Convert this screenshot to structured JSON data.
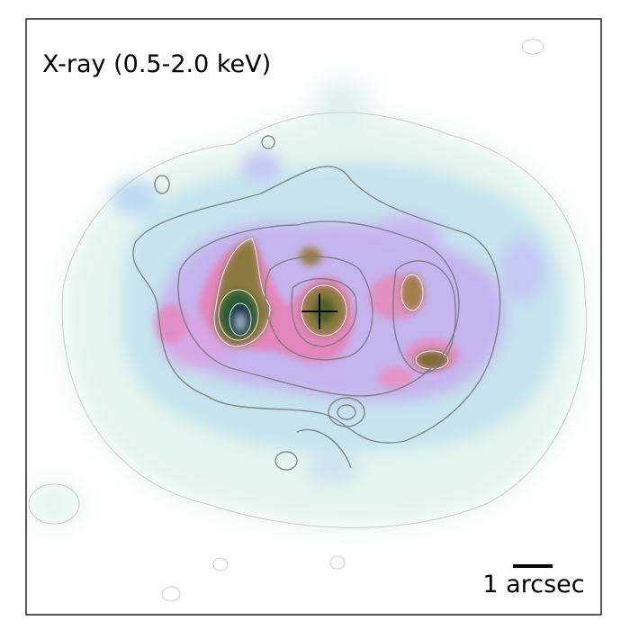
{
  "panel": {
    "label": "X-ray (0.5-2.0 keV)",
    "scale_bar": "1 arcsec"
  }
}
